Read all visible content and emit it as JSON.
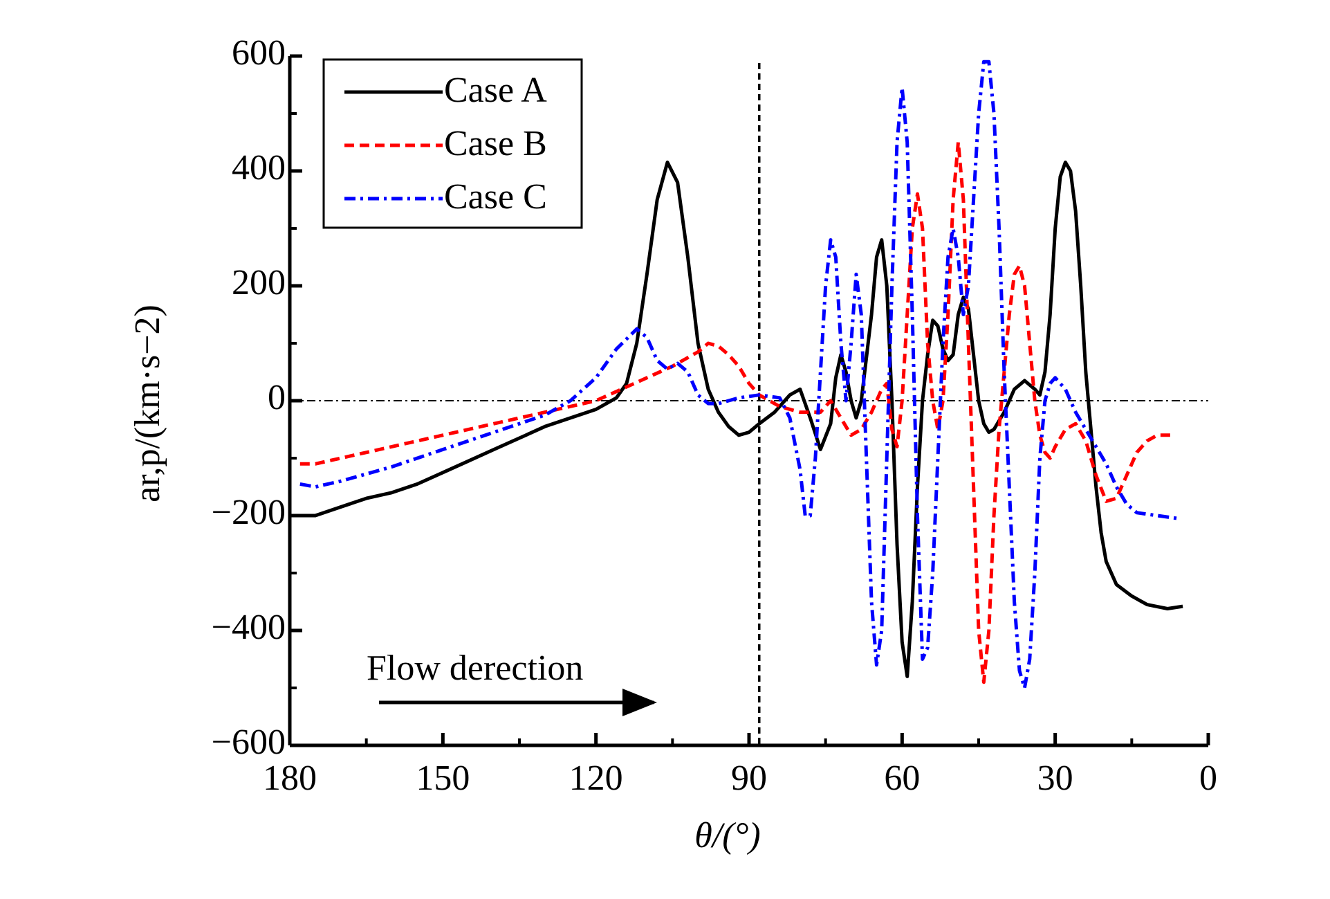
{
  "chart_data": {
    "type": "line",
    "xlabel": "θ/(°)",
    "ylabel": "ar,p/(km·s−2)",
    "annotation": "Flow derection",
    "xlim": [
      180,
      0
    ],
    "ylim": [
      -600,
      600
    ],
    "xticks": [
      180,
      150,
      120,
      90,
      60,
      30,
      0
    ],
    "yticks": [
      {
        "value": -600,
        "label": "−600"
      },
      {
        "value": -400,
        "label": "−400"
      },
      {
        "value": -200,
        "label": "−200"
      },
      0,
      200,
      400,
      600
    ],
    "vline": 88,
    "hline": 0,
    "legend": "upper left",
    "series": [
      {
        "name": "Case A",
        "color": "#000000",
        "dash": "solid",
        "x": [
          178,
          175,
          170,
          165,
          160,
          155,
          150,
          145,
          140,
          135,
          130,
          125,
          120,
          116,
          114,
          112,
          110,
          108,
          106,
          104,
          102,
          100,
          98,
          96,
          94,
          92,
          90,
          88,
          85,
          82,
          80,
          78,
          76,
          74,
          73,
          72,
          71,
          70,
          69,
          68,
          66,
          65,
          64,
          63,
          62,
          61,
          60,
          59,
          58,
          57,
          56,
          55,
          54,
          53,
          52,
          51,
          50,
          49,
          48,
          47,
          46,
          45,
          44,
          43,
          42,
          40,
          38,
          36,
          34,
          33,
          32,
          31,
          30,
          29,
          28,
          27,
          26,
          25,
          24,
          23,
          22,
          21,
          20,
          18,
          15,
          12,
          8,
          5
        ],
        "values": [
          -200,
          -200,
          -185,
          -170,
          -160,
          -145,
          -125,
          -105,
          -85,
          -65,
          -45,
          -30,
          -15,
          5,
          30,
          100,
          220,
          350,
          415,
          380,
          250,
          100,
          20,
          -20,
          -45,
          -60,
          -55,
          -40,
          -20,
          10,
          20,
          -30,
          -85,
          -40,
          40,
          80,
          50,
          0,
          -30,
          0,
          150,
          250,
          280,
          200,
          0,
          -250,
          -420,
          -480,
          -350,
          -150,
          0,
          80,
          140,
          130,
          90,
          70,
          80,
          150,
          180,
          160,
          80,
          0,
          -40,
          -55,
          -50,
          -20,
          20,
          35,
          20,
          10,
          50,
          150,
          300,
          390,
          415,
          400,
          330,
          200,
          50,
          -50,
          -150,
          -230,
          -280,
          -320,
          -340,
          -355,
          -362,
          -358
        ]
      },
      {
        "name": "Case B",
        "color": "#ff0000",
        "dash": "dashed",
        "x": [
          178,
          175,
          170,
          160,
          150,
          140,
          130,
          120,
          115,
          110,
          105,
          100,
          98,
          96,
          94,
          92,
          90,
          88,
          86,
          84,
          80,
          76,
          74,
          72,
          70,
          68,
          66,
          64,
          63,
          62,
          61,
          60,
          59,
          58,
          57,
          56,
          55,
          54,
          53,
          52,
          51,
          50,
          49,
          48,
          47,
          46,
          45,
          44,
          43,
          42,
          41,
          40,
          39,
          38,
          37,
          36,
          35,
          34,
          33,
          32,
          31,
          30,
          28,
          26,
          24,
          22,
          20,
          18,
          16,
          14,
          12,
          10,
          7
        ],
        "values": [
          -110,
          -110,
          -100,
          -80,
          -60,
          -40,
          -20,
          0,
          20,
          40,
          60,
          85,
          100,
          95,
          80,
          60,
          30,
          10,
          0,
          -10,
          -20,
          -20,
          0,
          -30,
          -60,
          -50,
          -20,
          20,
          30,
          -50,
          -80,
          0,
          150,
          300,
          360,
          300,
          100,
          0,
          -50,
          0,
          150,
          350,
          450,
          350,
          100,
          -150,
          -400,
          -490,
          -400,
          -200,
          -50,
          50,
          150,
          220,
          235,
          200,
          100,
          0,
          -60,
          -90,
          -100,
          -80,
          -50,
          -40,
          -70,
          -130,
          -175,
          -170,
          -130,
          -90,
          -70,
          -60,
          -60
        ]
      },
      {
        "name": "Case C",
        "color": "#0000ff",
        "dash": "dashdot",
        "x": [
          178,
          175,
          170,
          160,
          150,
          140,
          130,
          125,
          120,
          116,
          112,
          110,
          108,
          106,
          104,
          102,
          100,
          98,
          96,
          94,
          92,
          88,
          84,
          82,
          80,
          79,
          78,
          77,
          76,
          75,
          74,
          73,
          72,
          71,
          70,
          69,
          68,
          67,
          66,
          65,
          64,
          63,
          62,
          61,
          60,
          59,
          58,
          57,
          56,
          55,
          54,
          53,
          52,
          51,
          50,
          49,
          48,
          47,
          46,
          45,
          44,
          43,
          42,
          41,
          40,
          39,
          38,
          37,
          36,
          35,
          34,
          33,
          32,
          31,
          30,
          29,
          28,
          26,
          24,
          22,
          20,
          18,
          16,
          14,
          10,
          6
        ],
        "values": [
          -145,
          -150,
          -140,
          -115,
          -85,
          -55,
          -25,
          0,
          40,
          90,
          125,
          110,
          70,
          55,
          65,
          50,
          10,
          -5,
          -5,
          0,
          5,
          10,
          5,
          -30,
          -120,
          -200,
          -200,
          -100,
          50,
          200,
          280,
          250,
          100,
          0,
          100,
          220,
          150,
          -100,
          -350,
          -460,
          -400,
          -100,
          200,
          450,
          545,
          450,
          150,
          -200,
          -450,
          -430,
          -300,
          -100,
          100,
          250,
          300,
          250,
          150,
          200,
          350,
          500,
          590,
          590,
          500,
          300,
          50,
          -150,
          -350,
          -470,
          -500,
          -450,
          -300,
          -100,
          0,
          30,
          40,
          30,
          20,
          -20,
          -50,
          -80,
          -110,
          -150,
          -180,
          -195,
          -200,
          -205
        ]
      }
    ]
  }
}
